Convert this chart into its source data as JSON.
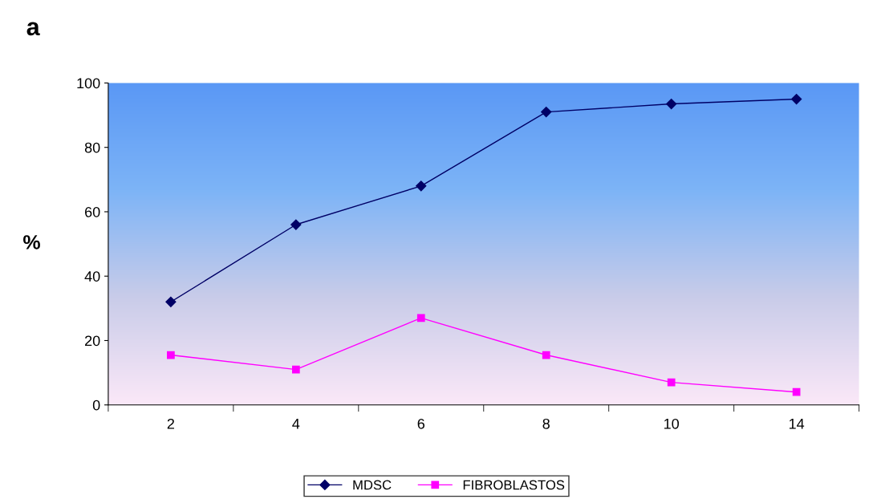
{
  "chart_data": {
    "type": "line",
    "title": "a",
    "ylabel": "%",
    "categories": [
      "2",
      "4",
      "6",
      "8",
      "10",
      "14"
    ],
    "series": [
      {
        "name": "MDSC",
        "color": "#000066",
        "marker": "diamond",
        "values": [
          32,
          56,
          68,
          91,
          93.5,
          95
        ]
      },
      {
        "name": "FIBROBLASTOS",
        "color": "#ff00ff",
        "marker": "square",
        "values": [
          15.5,
          11,
          27,
          15.5,
          7,
          4
        ]
      }
    ],
    "ylim": [
      0,
      100
    ],
    "yticks": [
      0,
      20,
      40,
      60,
      80,
      100
    ],
    "grid": false,
    "legend": "bottom",
    "line_style": "solid"
  }
}
